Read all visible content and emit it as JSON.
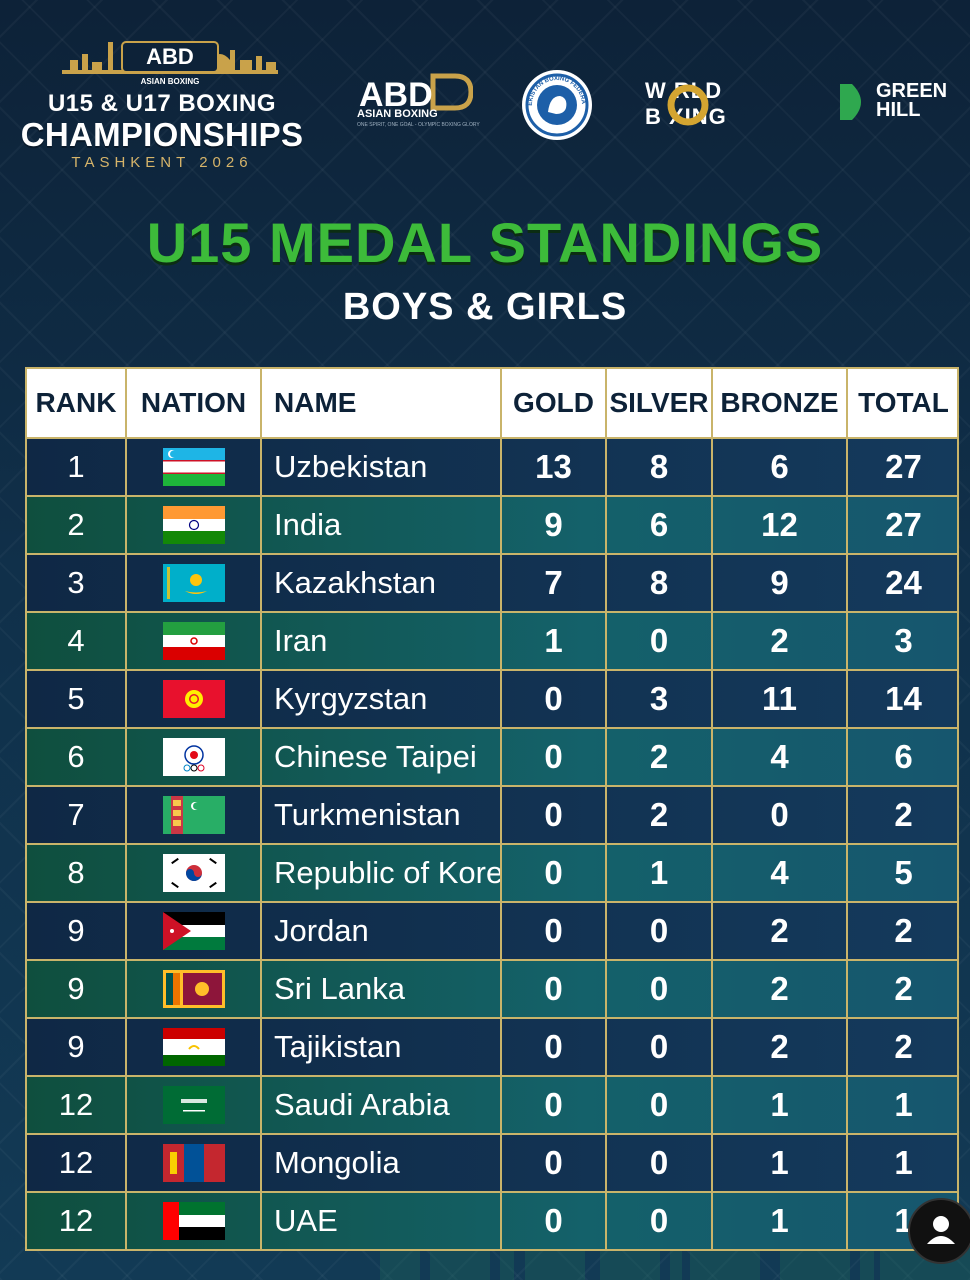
{
  "header": {
    "championship": {
      "mark": "ABD",
      "mark_sub": "ASIAN BOXING",
      "line1": "U15 & U17 BOXING",
      "line2": "CHAMPIONSHIPS",
      "line3": "TASHKENT 2026"
    },
    "sponsors": {
      "abd": {
        "mark": "ABD",
        "label": "ASIAN BOXING",
        "tagline": "ONE SPIRIT, ONE GOAL - OLYMPIC BOXING GLORY"
      },
      "ubf": {
        "label": "UZBEKISTAN BOXING FEDERATION"
      },
      "world_boxing": {
        "line1": "W RLD",
        "line2": "B XING"
      },
      "green_hill": {
        "line1": "GREEN",
        "line2": "HILL"
      }
    }
  },
  "title": "U15 MEDAL STANDINGS",
  "subtitle": "BOYS & GIRLS",
  "table": {
    "columns": {
      "rank": "RANK",
      "nation": "NATION",
      "name": "NAME",
      "gold": "GOLD",
      "silver": "SILVER",
      "bronze": "BRONZE",
      "total": "TOTAL"
    },
    "rows": [
      {
        "rank": "1",
        "flag": "uzbekistan-flag",
        "name": "Uzbekistan",
        "gold": "13",
        "silver": "8",
        "bronze": "6",
        "total": "27"
      },
      {
        "rank": "2",
        "flag": "india-flag",
        "name": "India",
        "gold": "9",
        "silver": "6",
        "bronze": "12",
        "total": "27"
      },
      {
        "rank": "3",
        "flag": "kazakhstan-flag",
        "name": "Kazakhstan",
        "gold": "7",
        "silver": "8",
        "bronze": "9",
        "total": "24"
      },
      {
        "rank": "4",
        "flag": "iran-flag",
        "name": "Iran",
        "gold": "1",
        "silver": "0",
        "bronze": "2",
        "total": "3"
      },
      {
        "rank": "5",
        "flag": "kyrgyzstan-flag",
        "name": "Kyrgyzstan",
        "gold": "0",
        "silver": "3",
        "bronze": "11",
        "total": "14"
      },
      {
        "rank": "6",
        "flag": "chinese-taipei-flag",
        "name": "Chinese Taipei",
        "gold": "0",
        "silver": "2",
        "bronze": "4",
        "total": "6"
      },
      {
        "rank": "7",
        "flag": "turkmenistan-flag",
        "name": "Turkmenistan",
        "gold": "0",
        "silver": "2",
        "bronze": "0",
        "total": "2"
      },
      {
        "rank": "8",
        "flag": "korea-flag",
        "name": "Republic of Korea",
        "gold": "0",
        "silver": "1",
        "bronze": "4",
        "total": "5"
      },
      {
        "rank": "9",
        "flag": "jordan-flag",
        "name": "Jordan",
        "gold": "0",
        "silver": "0",
        "bronze": "2",
        "total": "2"
      },
      {
        "rank": "9",
        "flag": "sri-lanka-flag",
        "name": "Sri Lanka",
        "gold": "0",
        "silver": "0",
        "bronze": "2",
        "total": "2"
      },
      {
        "rank": "9",
        "flag": "tajikistan-flag",
        "name": "Tajikistan",
        "gold": "0",
        "silver": "0",
        "bronze": "2",
        "total": "2"
      },
      {
        "rank": "12",
        "flag": "saudi-arabia-flag",
        "name": "Saudi Arabia",
        "gold": "0",
        "silver": "0",
        "bronze": "1",
        "total": "1"
      },
      {
        "rank": "12",
        "flag": "mongolia-flag",
        "name": "Mongolia",
        "gold": "0",
        "silver": "0",
        "bronze": "1",
        "total": "1"
      },
      {
        "rank": "12",
        "flag": "uae-flag",
        "name": "UAE",
        "gold": "0",
        "silver": "0",
        "bronze": "1",
        "total": "1"
      }
    ]
  },
  "colors": {
    "title_green": "#3dbb3a",
    "gold_border": "#c9b46a",
    "navy": "#0d2238",
    "teal_row": "#14616a"
  },
  "icons": {
    "avatar": "user-avatar-icon"
  }
}
